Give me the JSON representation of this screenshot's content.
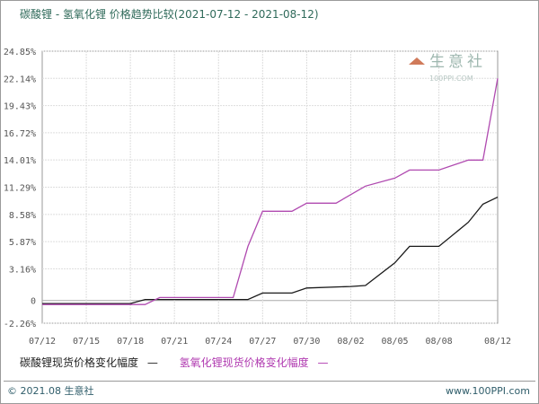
{
  "title": "碳酸锂 - 氢氧化锂 价格趋势比较(2021-07-12 - 2021-08-12)",
  "watermark": {
    "name": "生意社",
    "url": "100PPI.COM"
  },
  "footer": {
    "left": "© 2021.08 生意社",
    "right": "www.100PPI.com"
  },
  "legend": [
    {
      "label": "碳酸锂现货价格变化幅度",
      "mark": "—"
    },
    {
      "label": "氢氧化锂现货价格变化幅度",
      "mark": "—"
    }
  ],
  "chart_data": {
    "type": "line",
    "title": "碳酸锂 - 氢氧化锂 价格趋势比较(2021-07-12 - 2021-08-12)",
    "xlabel": "",
    "ylabel": "",
    "x_ticks": [
      "07/12",
      "07/15",
      "07/18",
      "07/21",
      "07/24",
      "07/27",
      "07/30",
      "08/02",
      "08/05",
      "08/08",
      "08/12"
    ],
    "y_ticks": [
      "24.85%",
      "22.14%",
      "19.43%",
      "16.72%",
      "14.01%",
      "11.29%",
      "8.58%",
      "5.87%",
      "3.16%",
      "0",
      "-2.26%"
    ],
    "y_tick_values": [
      24.85,
      22.14,
      19.43,
      16.72,
      14.01,
      11.29,
      8.58,
      5.87,
      3.16,
      0,
      -2.26
    ],
    "ylim": [
      -2.26,
      24.85
    ],
    "xlim": [
      "2021-07-12",
      "2021-08-12"
    ],
    "grid": true,
    "legend_position": "bottom",
    "series": [
      {
        "name": "碳酸锂现货价格变化幅度",
        "color": "#1a1a1a",
        "points": [
          [
            "2021-07-12",
            -0.3
          ],
          [
            "2021-07-18",
            -0.3
          ],
          [
            "2021-07-19",
            0.1
          ],
          [
            "2021-07-26",
            0.1
          ],
          [
            "2021-07-27",
            0.75
          ],
          [
            "2021-07-29",
            0.75
          ],
          [
            "2021-07-30",
            1.25
          ],
          [
            "2021-08-02",
            1.4
          ],
          [
            "2021-08-03",
            1.5
          ],
          [
            "2021-08-05",
            3.75
          ],
          [
            "2021-08-06",
            5.4
          ],
          [
            "2021-08-08",
            5.4
          ],
          [
            "2021-08-10",
            7.8
          ],
          [
            "2021-08-11",
            9.6
          ],
          [
            "2021-08-12",
            10.3
          ]
        ]
      },
      {
        "name": "氢氧化锂现货价格变化幅度",
        "color": "#b04ab0",
        "points": [
          [
            "2021-07-12",
            -0.4
          ],
          [
            "2021-07-19",
            -0.4
          ],
          [
            "2021-07-20",
            0.3
          ],
          [
            "2021-07-25",
            0.3
          ],
          [
            "2021-07-26",
            5.4
          ],
          [
            "2021-07-27",
            8.9
          ],
          [
            "2021-07-29",
            8.9
          ],
          [
            "2021-07-30",
            9.7
          ],
          [
            "2021-08-01",
            9.7
          ],
          [
            "2021-08-03",
            11.4
          ],
          [
            "2021-08-05",
            12.2
          ],
          [
            "2021-08-06",
            13.0
          ],
          [
            "2021-08-08",
            13.0
          ],
          [
            "2021-08-10",
            14.0
          ],
          [
            "2021-08-11",
            14.0
          ],
          [
            "2021-08-12",
            22.14
          ]
        ]
      }
    ]
  }
}
